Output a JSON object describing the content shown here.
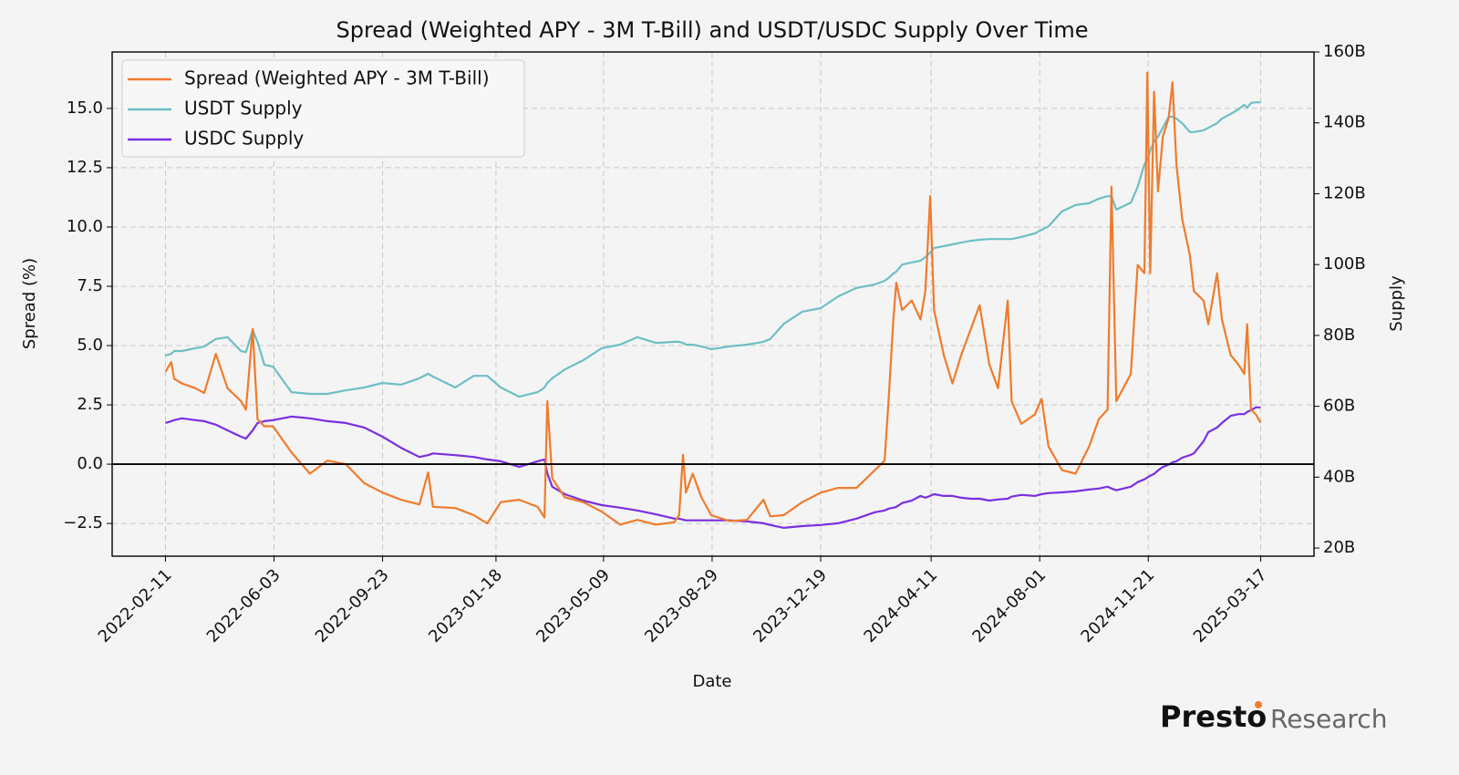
{
  "chart_data": {
    "type": "line",
    "title": "Spread (Weighted APY - 3M T-Bill) and USDT/USDC Supply Over Time",
    "x_label": "Date",
    "y_label": "Spread (%)",
    "y2_label": "Supply",
    "watermark": {
      "brand": "Presto",
      "suffix": "Research"
    },
    "legend": "upper left",
    "grid": true,
    "hline": 0,
    "xlim": [
      "2021-12-18",
      "2025-05-11"
    ],
    "xticks": [
      "2022-02-11",
      "2022-06-03",
      "2022-09-23",
      "2023-01-18",
      "2023-05-09",
      "2023-08-29",
      "2023-12-19",
      "2024-04-11",
      "2024-08-01",
      "2024-11-21",
      "2025-03-17"
    ],
    "ylim": [
      -3.88,
      17.38
    ],
    "yticks": [
      {
        "value": -2.5,
        "label": "−2.5"
      },
      {
        "value": 0,
        "label": "0.0"
      },
      2.5,
      {
        "value": 5,
        "label": "5.0"
      },
      7.5,
      {
        "value": 10,
        "label": "10.0"
      },
      12.5,
      {
        "value": 15,
        "label": "15.0"
      }
    ],
    "y2lim": [
      17.7,
      160
    ],
    "y2ticks": [
      {
        "value": 20,
        "label": "20B"
      },
      {
        "value": 40,
        "label": "40B"
      },
      {
        "value": 60,
        "label": "60B"
      },
      {
        "value": 80,
        "label": "80B"
      },
      {
        "value": 100,
        "label": "100B"
      },
      {
        "value": 120,
        "label": "120B"
      },
      {
        "value": 140,
        "label": "140B"
      },
      {
        "value": 160,
        "label": "160B"
      }
    ],
    "x": [
      "2022-02-11",
      "2022-02-17",
      "2022-02-20",
      "2022-02-28",
      "2022-03-14",
      "2022-03-23",
      "2022-04-04",
      "2022-04-16",
      "2022-04-30",
      "2022-05-05",
      "2022-05-12",
      "2022-05-17",
      "2022-05-24",
      "2022-06-02",
      "2022-06-21",
      "2022-07-10",
      "2022-07-28",
      "2022-08-16",
      "2022-09-04",
      "2022-09-23",
      "2022-10-12",
      "2022-10-31",
      "2022-11-09",
      "2022-11-14",
      "2022-12-07",
      "2022-12-26",
      "2023-01-09",
      "2023-01-23",
      "2023-02-11",
      "2023-03-02",
      "2023-03-09",
      "2023-03-12",
      "2023-03-17",
      "2023-03-30",
      "2023-04-18",
      "2023-05-07",
      "2023-05-26",
      "2023-06-13",
      "2023-07-02",
      "2023-07-21",
      "2023-07-26",
      "2023-07-30",
      "2023-08-02",
      "2023-08-09",
      "2023-08-18",
      "2023-08-28",
      "2023-09-16",
      "2023-10-04",
      "2023-10-21",
      "2023-10-28",
      "2023-11-11",
      "2023-11-30",
      "2023-12-19",
      "2024-01-06",
      "2024-01-25",
      "2024-02-13",
      "2024-02-23",
      "2024-02-27",
      "2024-03-03",
      "2024-03-06",
      "2024-03-12",
      "2024-03-22",
      "2024-03-31",
      "2024-04-05",
      "2024-04-10",
      "2024-04-14",
      "2024-04-24",
      "2024-05-03",
      "2024-05-12",
      "2024-05-22",
      "2024-05-31",
      "2024-06-10",
      "2024-06-19",
      "2024-06-29",
      "2024-07-03",
      "2024-07-13",
      "2024-07-27",
      "2024-08-03",
      "2024-08-10",
      "2024-08-24",
      "2024-09-07",
      "2024-09-21",
      "2024-10-01",
      "2024-10-10",
      "2024-10-14",
      "2024-10-19",
      "2024-11-03",
      "2024-11-10",
      "2024-11-17",
      "2024-11-20",
      "2024-11-23",
      "2024-11-27",
      "2024-12-01",
      "2024-12-06",
      "2024-12-12",
      "2024-12-16",
      "2024-12-20",
      "2024-12-26",
      "2025-01-03",
      "2025-01-07",
      "2025-01-17",
      "2025-01-22",
      "2025-01-31",
      "2025-02-05",
      "2025-02-14",
      "2025-02-22",
      "2025-02-28",
      "2025-03-03",
      "2025-03-07",
      "2025-03-12",
      "2025-03-17"
    ],
    "series": [
      {
        "name": "Spread (Weighted APY - 3M T-Bill)",
        "color": "#f07b2c",
        "values": [
          3.9,
          4.3,
          3.6,
          3.4,
          3.2,
          3.0,
          4.65,
          3.2,
          2.65,
          2.3,
          5.7,
          1.9,
          1.6,
          1.6,
          0.5,
          -0.4,
          0.15,
          0,
          -0.8,
          -1.2,
          -1.5,
          -1.7,
          -0.35,
          -1.8,
          -1.85,
          -2.15,
          -2.5,
          -1.6,
          -1.5,
          -1.8,
          -2.25,
          2.65,
          -0.6,
          -1.4,
          -1.6,
          -2.0,
          -2.55,
          -2.35,
          -2.55,
          -2.45,
          -2.15,
          0.4,
          -1.2,
          -0.4,
          -1.4,
          -2.15,
          -2.4,
          -2.35,
          -1.5,
          -2.2,
          -2.15,
          -1.6,
          -1.2,
          -1.0,
          -1.0,
          -0.25,
          0.15,
          2.65,
          6.1,
          7.65,
          6.5,
          6.9,
          6.1,
          7.3,
          11.3,
          6.5,
          4.6,
          3.4,
          4.6,
          5.7,
          6.7,
          4.2,
          3.2,
          6.9,
          2.65,
          1.7,
          2.1,
          2.75,
          0.75,
          -0.25,
          -0.4,
          0.75,
          1.9,
          2.3,
          11.7,
          2.65,
          3.8,
          8.4,
          8.05,
          16.5,
          8.05,
          15.7,
          11.5,
          13.8,
          14.6,
          16.1,
          12.65,
          10.35,
          8.8,
          7.3,
          6.9,
          5.9,
          8.05,
          6.1,
          4.6,
          4.2,
          3.8,
          5.9,
          2.3,
          2.1,
          1.75
        ]
      },
      {
        "name": "USDT Supply",
        "color": "#6dbfc5",
        "axis": "y2",
        "values": [
          74.3,
          74.8,
          75.6,
          75.6,
          76.4,
          76.9,
          79,
          79.5,
          75.6,
          75.3,
          81.5,
          78.2,
          71.7,
          71.2,
          64,
          63.5,
          63.5,
          64.5,
          65.3,
          66.6,
          66.1,
          67.9,
          69.2,
          68.4,
          65.3,
          68.6,
          68.6,
          65.3,
          62.7,
          64,
          65.3,
          66.6,
          67.9,
          70.4,
          73,
          76.4,
          77.4,
          79.5,
          77.9,
          78.2,
          78.2,
          77.9,
          77.4,
          77.4,
          76.9,
          76.1,
          76.9,
          77.4,
          78.2,
          79,
          83.3,
          86.7,
          87.7,
          91,
          93.4,
          94.4,
          95.4,
          96.2,
          97.5,
          98,
          100,
          100.6,
          101.1,
          102.1,
          103.4,
          104.7,
          105.2,
          105.7,
          106.2,
          106.7,
          107,
          107.2,
          107.2,
          107.2,
          107.2,
          107.8,
          108.8,
          109.8,
          110.8,
          115,
          116.8,
          117.3,
          118.6,
          119.3,
          119.3,
          115.5,
          117.5,
          121.9,
          128.3,
          129.6,
          132.2,
          134.8,
          136.1,
          138.6,
          141.7,
          141.7,
          141.2,
          139.9,
          137.4,
          137.4,
          137.9,
          138.6,
          139.9,
          141.2,
          142.5,
          143.8,
          145.1,
          144.3,
          145.6,
          145.8,
          145.8
        ]
      },
      {
        "name": "USDC Supply",
        "color": "#7a2fe0",
        "axis": "y2",
        "values": [
          55.3,
          55.8,
          56.1,
          56.6,
          56.1,
          55.8,
          54.8,
          53.2,
          51.4,
          50.9,
          53.2,
          55.3,
          55.8,
          56.1,
          57.1,
          56.6,
          55.8,
          55.3,
          54,
          51.4,
          48.3,
          45.7,
          46.2,
          46.7,
          46.2,
          45.7,
          45,
          44.5,
          42.9,
          44.5,
          45,
          41.1,
          37.3,
          35.2,
          33.4,
          32.1,
          31.4,
          30.6,
          29.5,
          28.3,
          28.3,
          28,
          27.8,
          27.8,
          27.8,
          27.8,
          27.8,
          27.5,
          27,
          26.5,
          25.7,
          26.2,
          26.5,
          27,
          28.3,
          30.1,
          30.6,
          31.1,
          31.4,
          31.6,
          32.7,
          33.4,
          34.7,
          34.2,
          34.7,
          35.2,
          34.7,
          34.7,
          34.2,
          33.9,
          33.9,
          33.4,
          33.7,
          33.9,
          34.5,
          35,
          34.7,
          35.2,
          35.5,
          35.7,
          36,
          36.5,
          36.8,
          37.3,
          36.8,
          36.3,
          37.3,
          38.6,
          39.4,
          39.9,
          40.4,
          40.9,
          41.9,
          42.9,
          43.5,
          44.2,
          44.5,
          45.5,
          46.2,
          46.7,
          50.1,
          52.7,
          54,
          55.3,
          57.3,
          57.8,
          57.8,
          58.4,
          58.9,
          59.7,
          59.7
        ]
      }
    ]
  }
}
